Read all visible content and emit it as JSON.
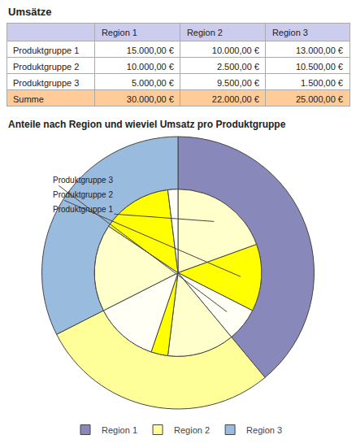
{
  "chart_data": {
    "type": "pie",
    "title": "Anteile nach Region und wieviel Umsatz pro Produktgruppe",
    "categories": [
      "Region 1",
      "Region 2",
      "Region 3"
    ],
    "values": [
      30000,
      22000,
      25000
    ],
    "value_labels": [
      "30.000,00 €",
      "22.000,00 €",
      "25.000,00 €"
    ],
    "colors": [
      "#8888bb",
      "#ffff99",
      "#99bbdd"
    ],
    "series": [
      {
        "name": "Produktgruppe 1",
        "color": "#ffffcc",
        "values": [
          15000,
          10000,
          13000
        ],
        "value_labels": [
          "15.000,00 €",
          "10.000,00 €",
          "13.000,00 €"
        ]
      },
      {
        "name": "Produktgruppe 2",
        "color": "#ffff00",
        "values": [
          10000,
          2500,
          10500
        ],
        "value_labels": [
          "10.000,00 €",
          "2.500,00 €",
          "10.500,00 €"
        ]
      },
      {
        "name": "Produktgruppe 3",
        "color": "#fffff5",
        "values": [
          5000,
          9500,
          1500
        ],
        "value_labels": [
          "5.000,00 €",
          "9.500,00 €",
          "1.500,00 €"
        ]
      }
    ],
    "annotations": [
      {
        "text": "Produktgruppe 3",
        "category": "Region 1",
        "series": "Produktgruppe 3"
      },
      {
        "text": "Produktgruppe 2",
        "category": "Region 1",
        "series": "Produktgruppe 2"
      },
      {
        "text": "Produktgruppe 1",
        "category": "Region 1",
        "series": "Produktgruppe 1"
      }
    ],
    "table": {
      "title": "Umsätze",
      "total_label": "Summe",
      "colors": {
        "header": "#ccccee",
        "total": "#ffcc99",
        "cells": "#ffffff",
        "line": "#aaaaaa"
      }
    },
    "legend": "bottom"
  }
}
